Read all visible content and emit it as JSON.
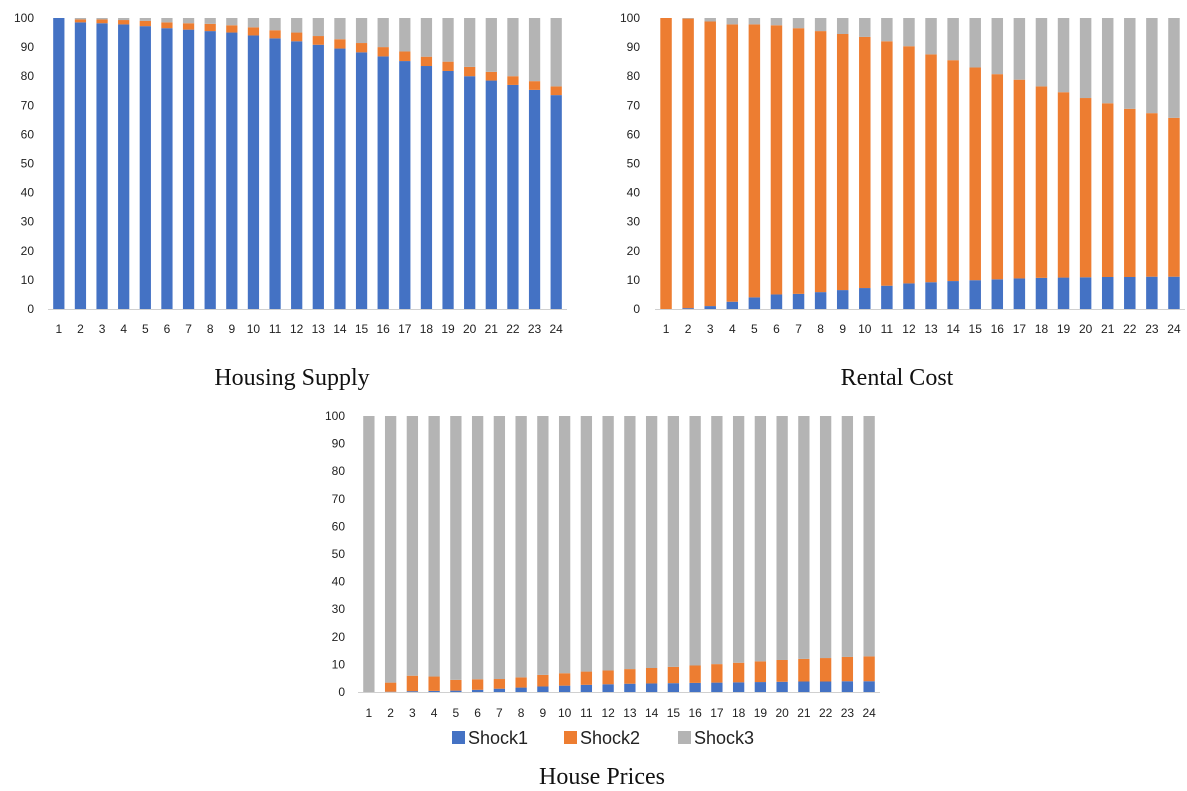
{
  "legend": {
    "items": [
      {
        "name": "Shock1",
        "color": "#4472C4"
      },
      {
        "name": "Shock2",
        "color": "#ED7D31"
      },
      {
        "name": "Shock3",
        "color": "#B4B4B4"
      }
    ]
  },
  "chart_data": [
    {
      "type": "bar",
      "stacked": true,
      "caption": "Housing Supply",
      "categories": [
        "1",
        "2",
        "3",
        "4",
        "5",
        "6",
        "7",
        "8",
        "9",
        "10",
        "11",
        "12",
        "13",
        "14",
        "15",
        "16",
        "17",
        "18",
        "19",
        "20",
        "21",
        "22",
        "23",
        "24"
      ],
      "ylim": [
        0,
        100
      ],
      "yticks": [
        0,
        10,
        20,
        30,
        40,
        50,
        60,
        70,
        80,
        90,
        100
      ],
      "grid": false,
      "series": [
        {
          "name": "Shock1",
          "color": "#4472C4",
          "values": [
            100,
            98.5,
            98.2,
            97.8,
            97.2,
            96.5,
            96,
            95.5,
            95,
            94,
            93,
            92,
            90.8,
            89.5,
            88.2,
            86.8,
            85.2,
            83.5,
            81.8,
            80,
            78.5,
            77,
            75.3,
            73.5
          ]
        },
        {
          "name": "Shock2",
          "color": "#ED7D31",
          "values": [
            0,
            1,
            1.3,
            1.5,
            1.8,
            2,
            2.2,
            2.5,
            2.5,
            2.8,
            2.8,
            3,
            3,
            3.2,
            3.2,
            3.2,
            3.3,
            3.2,
            3.2,
            3.2,
            3,
            3,
            3,
            3
          ]
        },
        {
          "name": "Shock3",
          "color": "#B4B4B4",
          "values": [
            0,
            0.5,
            0.5,
            0.7,
            1,
            1.5,
            1.8,
            2,
            2.5,
            3.2,
            4.2,
            5,
            6.2,
            7.3,
            8.6,
            10,
            11.5,
            13.3,
            15,
            16.8,
            18.5,
            20,
            21.7,
            23.5
          ]
        }
      ]
    },
    {
      "type": "bar",
      "stacked": true,
      "caption": "Rental Cost",
      "categories": [
        "1",
        "2",
        "3",
        "4",
        "5",
        "6",
        "7",
        "8",
        "9",
        "10",
        "11",
        "12",
        "13",
        "14",
        "15",
        "16",
        "17",
        "18",
        "19",
        "20",
        "21",
        "22",
        "23",
        "24"
      ],
      "ylim": [
        0,
        100
      ],
      "yticks": [
        0,
        10,
        20,
        30,
        40,
        50,
        60,
        70,
        80,
        90,
        100
      ],
      "grid": false,
      "series": [
        {
          "name": "Shock1",
          "color": "#4472C4",
          "values": [
            0,
            0.3,
            1,
            2.5,
            4,
            5,
            5.2,
            5.8,
            6.5,
            7.2,
            8,
            8.8,
            9.2,
            9.6,
            9.9,
            10.2,
            10.5,
            10.7,
            10.8,
            10.9,
            11,
            11,
            11.1,
            11.1
          ]
        },
        {
          "name": "Shock2",
          "color": "#ED7D31",
          "values": [
            100,
            99.5,
            97.8,
            95.3,
            93.8,
            92.5,
            91.3,
            89.7,
            88,
            86.3,
            84,
            81.5,
            78.3,
            75.9,
            73.1,
            70.5,
            68.3,
            65.8,
            63.7,
            61.6,
            59.7,
            57.8,
            56.2,
            54.6
          ]
        },
        {
          "name": "Shock3",
          "color": "#B4B4B4",
          "values": [
            0,
            0.2,
            1.2,
            2.2,
            2.2,
            2.5,
            3.5,
            4.5,
            5.5,
            6.5,
            8,
            9.7,
            12.5,
            14.5,
            17,
            19.3,
            21.2,
            23.5,
            25.5,
            27.5,
            29.3,
            31.2,
            32.7,
            34.3
          ]
        }
      ]
    },
    {
      "type": "bar",
      "stacked": true,
      "caption": "House Prices",
      "categories": [
        "1",
        "2",
        "3",
        "4",
        "5",
        "6",
        "7",
        "8",
        "9",
        "10",
        "11",
        "12",
        "13",
        "14",
        "15",
        "16",
        "17",
        "18",
        "19",
        "20",
        "21",
        "22",
        "23",
        "24"
      ],
      "ylim": [
        0,
        100
      ],
      "yticks": [
        0,
        10,
        20,
        30,
        40,
        50,
        60,
        70,
        80,
        90,
        100
      ],
      "grid": false,
      "legend_position": "bottom",
      "series": [
        {
          "name": "Shock1",
          "color": "#4472C4",
          "values": [
            0,
            0.1,
            0.3,
            0.4,
            0.5,
            0.8,
            1.2,
            1.6,
            2,
            2.3,
            2.6,
            2.8,
            3,
            3.1,
            3.2,
            3.3,
            3.4,
            3.5,
            3.6,
            3.7,
            3.8,
            3.8,
            3.9,
            3.9
          ]
        },
        {
          "name": "Shock2",
          "color": "#ED7D31",
          "values": [
            0,
            3.3,
            5.6,
            5.2,
            3.9,
            3.8,
            3.5,
            3.7,
            4.2,
            4.5,
            4.8,
            5,
            5.3,
            5.6,
            5.9,
            6.3,
            6.7,
            7.1,
            7.5,
            7.9,
            8.2,
            8.5,
            8.8,
            9
          ]
        },
        {
          "name": "Shock3",
          "color": "#B4B4B4",
          "values": [
            100,
            96.6,
            94.1,
            94.4,
            95.6,
            95.4,
            95.3,
            94.7,
            93.8,
            93.2,
            92.6,
            92.2,
            91.7,
            91.3,
            90.9,
            90.4,
            89.9,
            89.4,
            88.9,
            88.4,
            88,
            87.7,
            87.3,
            87.1
          ]
        }
      ]
    }
  ]
}
